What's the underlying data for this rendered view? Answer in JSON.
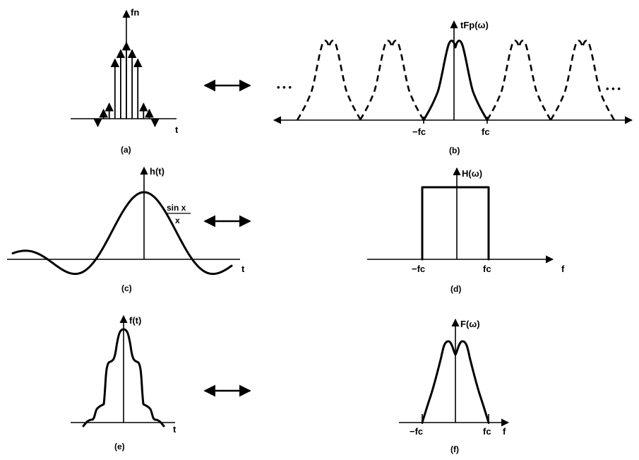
{
  "panels": {
    "a": {
      "axis_label": "fn",
      "t_label": "t",
      "caption": "(a)"
    },
    "b": {
      "axis_label": "tFp(ω)",
      "neg_fc": "−fc",
      "pos_fc": "fc",
      "ellipsis_left": "• • •",
      "ellipsis_right": "• • •",
      "caption": "(b)"
    },
    "c": {
      "axis_label": "h(t)",
      "formula_num": "sin x",
      "formula_den": "x",
      "t_label": "t",
      "caption": "(c)"
    },
    "d": {
      "axis_label": "H(ω)",
      "neg_fc": "−fc",
      "pos_fc": "fc",
      "f_label": "f",
      "caption": "(d)"
    },
    "e": {
      "axis_label": "f(t)",
      "t_label": "t",
      "caption": "(e)"
    },
    "f": {
      "axis_label": "F(ω)",
      "neg_fc": "−fc",
      "pos_fc": "fc",
      "f_label": "f",
      "caption": "(f)"
    }
  },
  "correspondence_arrow": "double-headed-arrow",
  "samples_a": [
    -0.1,
    0.12,
    0.2,
    0.78,
    0.9,
    1.0,
    0.9,
    0.78,
    0.2,
    0.12,
    -0.1
  ]
}
